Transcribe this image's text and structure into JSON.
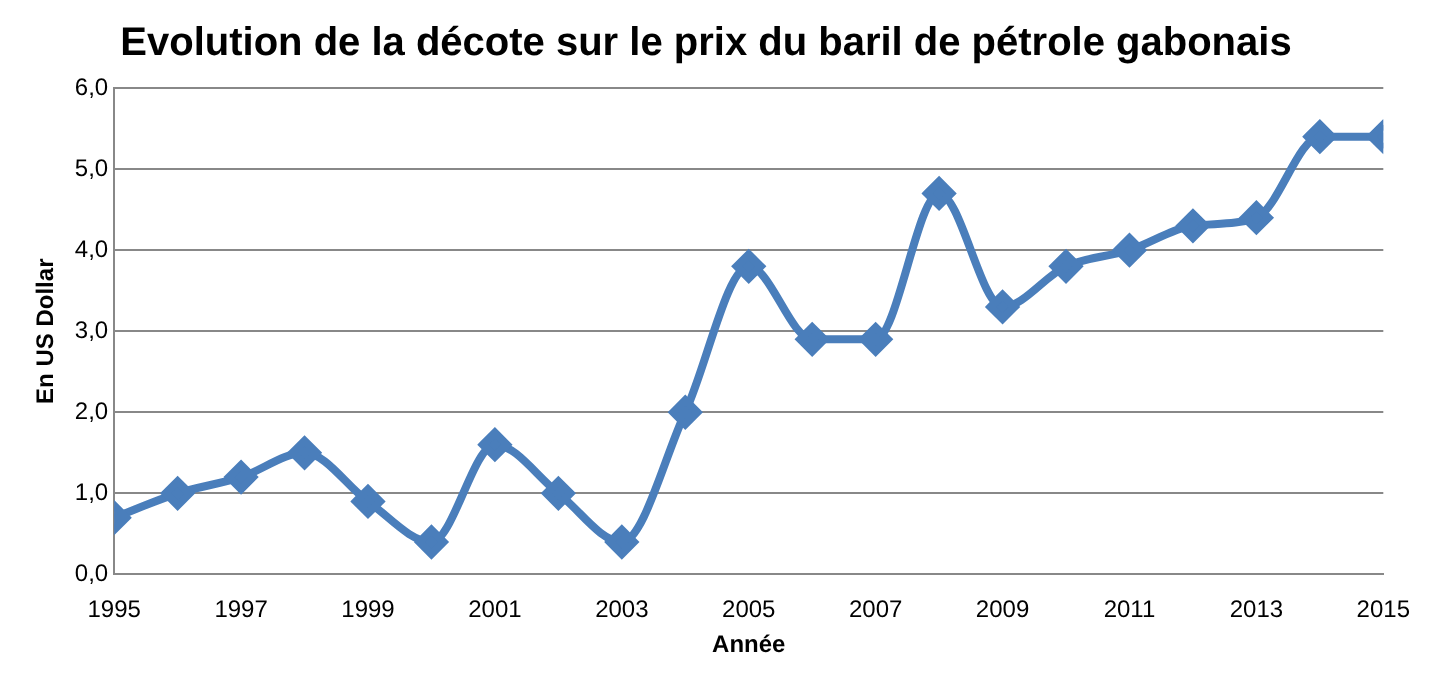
{
  "chart_data": {
    "type": "line",
    "title": "Evolution de la décote sur le prix du baril de pétrole gabonais",
    "xlabel": "Année",
    "ylabel": "En US Dollar",
    "x": [
      1995,
      1996,
      1997,
      1998,
      1999,
      2000,
      2001,
      2002,
      2003,
      2004,
      2005,
      2006,
      2007,
      2008,
      2009,
      2010,
      2011,
      2012,
      2013,
      2014,
      2015
    ],
    "series": [
      {
        "color": "#4a7ebb",
        "values": [
          0.7,
          1.0,
          1.2,
          1.5,
          0.9,
          0.4,
          1.6,
          1.0,
          0.4,
          2.0,
          3.8,
          2.9,
          2.9,
          4.7,
          3.3,
          3.8,
          4.0,
          4.3,
          4.4,
          5.4,
          5.4
        ]
      }
    ],
    "xlim": [
      1995,
      2015
    ],
    "xticks": [
      1995,
      1997,
      1999,
      2001,
      2003,
      2005,
      2007,
      2009,
      2011,
      2013,
      2015
    ],
    "ylim": [
      0,
      6
    ],
    "yticks": [
      {
        "value": 0,
        "label": "0,0"
      },
      {
        "value": 1,
        "label": "1,0"
      },
      {
        "value": 2,
        "label": "2,0"
      },
      {
        "value": 3,
        "label": "3,0"
      },
      {
        "value": 4,
        "label": "4,0"
      },
      {
        "value": 5,
        "label": "5,0"
      },
      {
        "value": 6,
        "label": "6,0"
      }
    ],
    "grid": "y",
    "legend": false,
    "marker": "diamond",
    "line_style": "solid"
  }
}
